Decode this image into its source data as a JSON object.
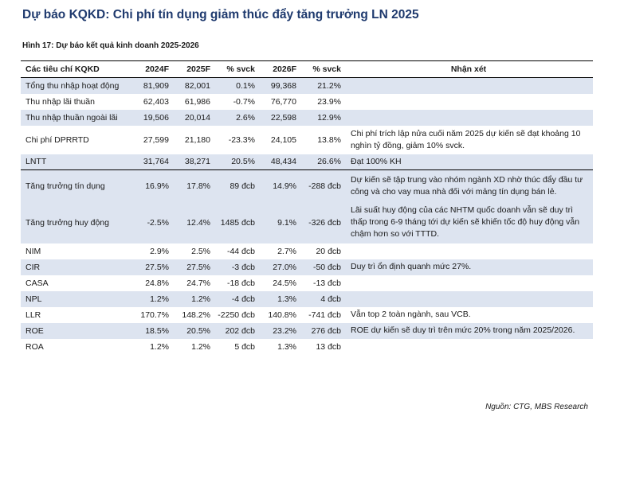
{
  "title": "Dự báo KQKD: Chi phí tín dụng giảm thúc đẩy tăng trưởng LN 2025",
  "figure_caption": "Hình 17: Dự báo kết quả kinh doanh 2025-2026",
  "table": {
    "headers": [
      "Các tiêu chí KQKD",
      "2024F",
      "2025F",
      "% svck",
      "2026F",
      "% svck",
      "Nhận xét"
    ],
    "rows": [
      {
        "name": "Tổng thu nhập hoạt động",
        "v2024": "81,909",
        "v2025": "82,001",
        "p1": "0.1%",
        "v2026": "99,368",
        "p2": "21.2%",
        "note": ""
      },
      {
        "name": "Thu nhập lãi thuần",
        "v2024": "62,403",
        "v2025": "61,986",
        "p1": "-0.7%",
        "v2026": "76,770",
        "p2": "23.9%",
        "note": ""
      },
      {
        "name": "Thu nhập thuần ngoài lãi",
        "v2024": "19,506",
        "v2025": "20,014",
        "p1": "2.6%",
        "v2026": "22,598",
        "p2": "12.9%",
        "note": ""
      },
      {
        "name": "Chi phí DPRRTD",
        "v2024": "27,599",
        "v2025": "21,180",
        "p1": "-23.3%",
        "v2026": "24,105",
        "p2": "13.8%",
        "note": "Chi phí trích lập nửa cuối năm 2025 dự kiến sẽ đạt khoảng 10 nghìn tỷ đồng, giảm 10% svck."
      },
      {
        "name": "LNTT",
        "v2024": "31,764",
        "v2025": "38,271",
        "p1": "20.5%",
        "v2026": "48,434",
        "p2": "26.6%",
        "note": "Đạt 100% KH"
      },
      {
        "name": "Tăng trưởng tín dụng",
        "v2024": "16.9%",
        "v2025": "17.8%",
        "p1": "89 đcb",
        "v2026": "14.9%",
        "p2": "-288 đcb",
        "note": "Dự kiến sẽ tập trung vào nhóm ngành XD nhờ thúc đẩy đầu tư công và cho vay mua nhà đối với mảng tín dụng bán lẻ."
      },
      {
        "name": "Tăng trưởng huy động",
        "v2024": "-2.5%",
        "v2025": "12.4%",
        "p1": "1485 đcb",
        "v2026": "9.1%",
        "p2": "-326 đcb",
        "note": "Lãi suất huy động của các NHTM quốc doanh vẫn sẽ duy trì thấp trong 6-9 tháng tới dự kiến sẽ khiến tốc độ huy động vẫn chậm hơn so với TTTD."
      },
      {
        "name": "NIM",
        "v2024": "2.9%",
        "v2025": "2.5%",
        "p1": "-44 đcb",
        "v2026": "2.7%",
        "p2": "20 đcb",
        "note": ""
      },
      {
        "name": "CIR",
        "v2024": "27.5%",
        "v2025": "27.5%",
        "p1": "-3 đcb",
        "v2026": "27.0%",
        "p2": "-50 đcb",
        "note": "Duy trì ổn định quanh mức 27%."
      },
      {
        "name": "CASA",
        "v2024": "24.8%",
        "v2025": "24.7%",
        "p1": "-18 đcb",
        "v2026": "24.5%",
        "p2": "-13 đcb",
        "note": ""
      },
      {
        "name": "NPL",
        "v2024": "1.2%",
        "v2025": "1.2%",
        "p1": "-4 đcb",
        "v2026": "1.3%",
        "p2": "4 đcb",
        "note": ""
      },
      {
        "name": "LLR",
        "v2024": "170.7%",
        "v2025": "148.2%",
        "p1": "-2250 đcb",
        "v2026": "140.8%",
        "p2": "-741 đcb",
        "note": "Vẫn top 2 toàn ngành, sau VCB."
      },
      {
        "name": "ROE",
        "v2024": "18.5%",
        "v2025": "20.5%",
        "p1": "202 đcb",
        "v2026": "23.2%",
        "p2": "276 đcb",
        "note": "ROE dự kiến sẽ duy trì trên mức 20% trong năm 2025/2026."
      },
      {
        "name": "ROA",
        "v2024": "1.2%",
        "v2025": "1.2%",
        "p1": "5 đcb",
        "v2026": "1.3%",
        "p2": "13 đcb",
        "note": ""
      }
    ]
  },
  "source": "Nguồn: CTG, MBS Research",
  "colors": {
    "title": "#1f3a6e",
    "shaded_row": "#dde4f0"
  }
}
